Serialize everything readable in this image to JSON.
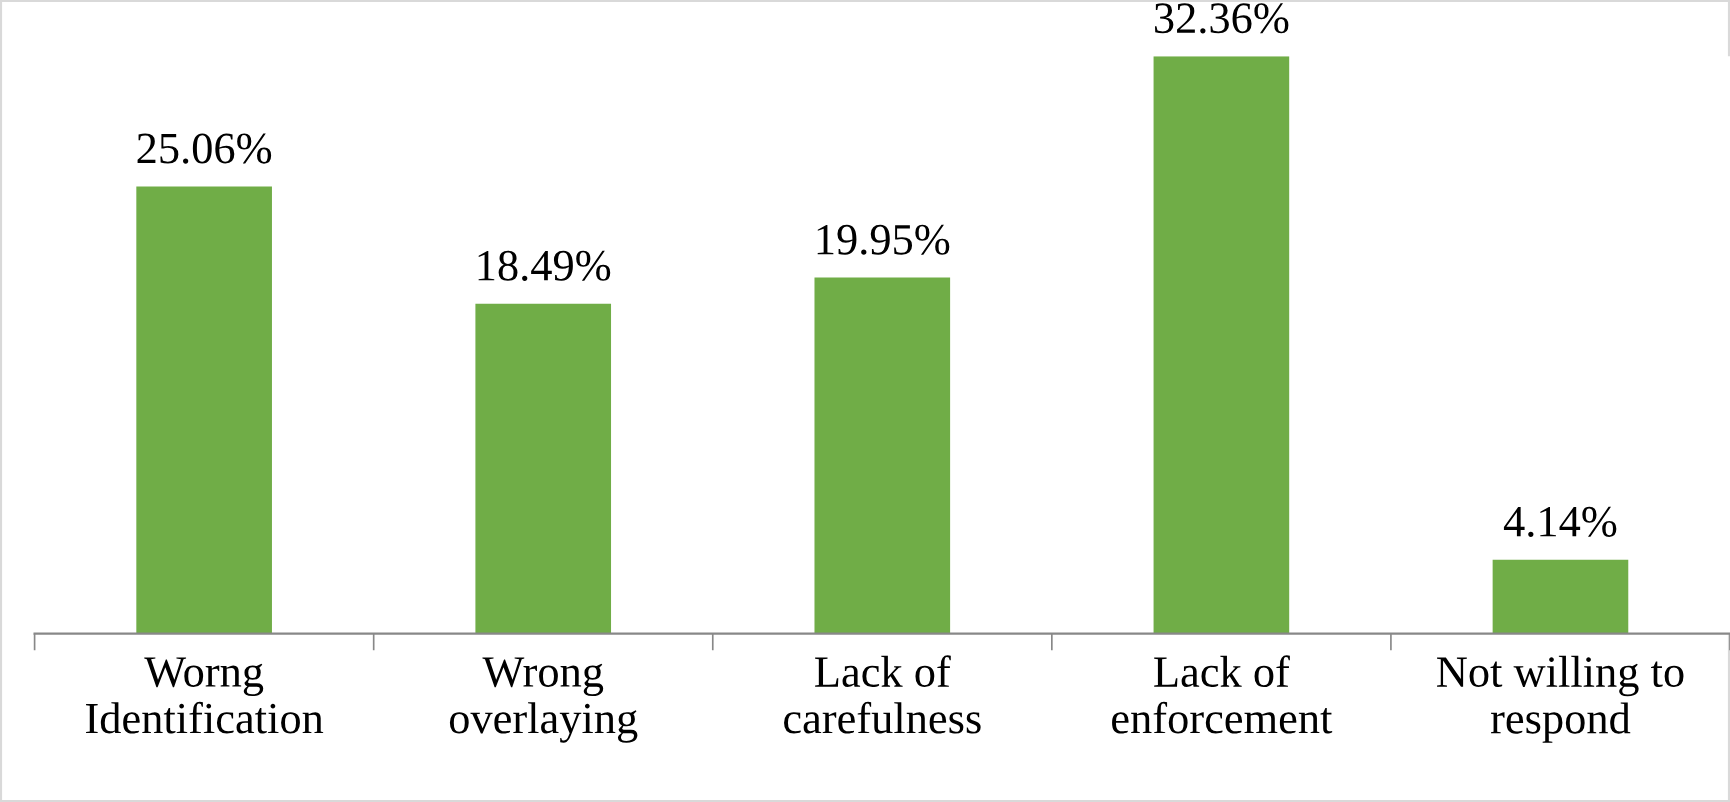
{
  "chart_data": {
    "type": "bar",
    "categories": [
      "Worng\nIdentification",
      "Wrong\noverlaying",
      "Lack of\ncarefulness",
      "Lack of\nenforcement",
      "Not willing to\nrespond"
    ],
    "values": [
      25.06,
      18.49,
      19.95,
      32.36,
      4.14
    ],
    "value_labels": [
      "25.06%",
      "18.49%",
      "19.95%",
      "32.36%",
      "4.14%"
    ],
    "color": "#70ad47",
    "grid": false,
    "legend": false
  }
}
